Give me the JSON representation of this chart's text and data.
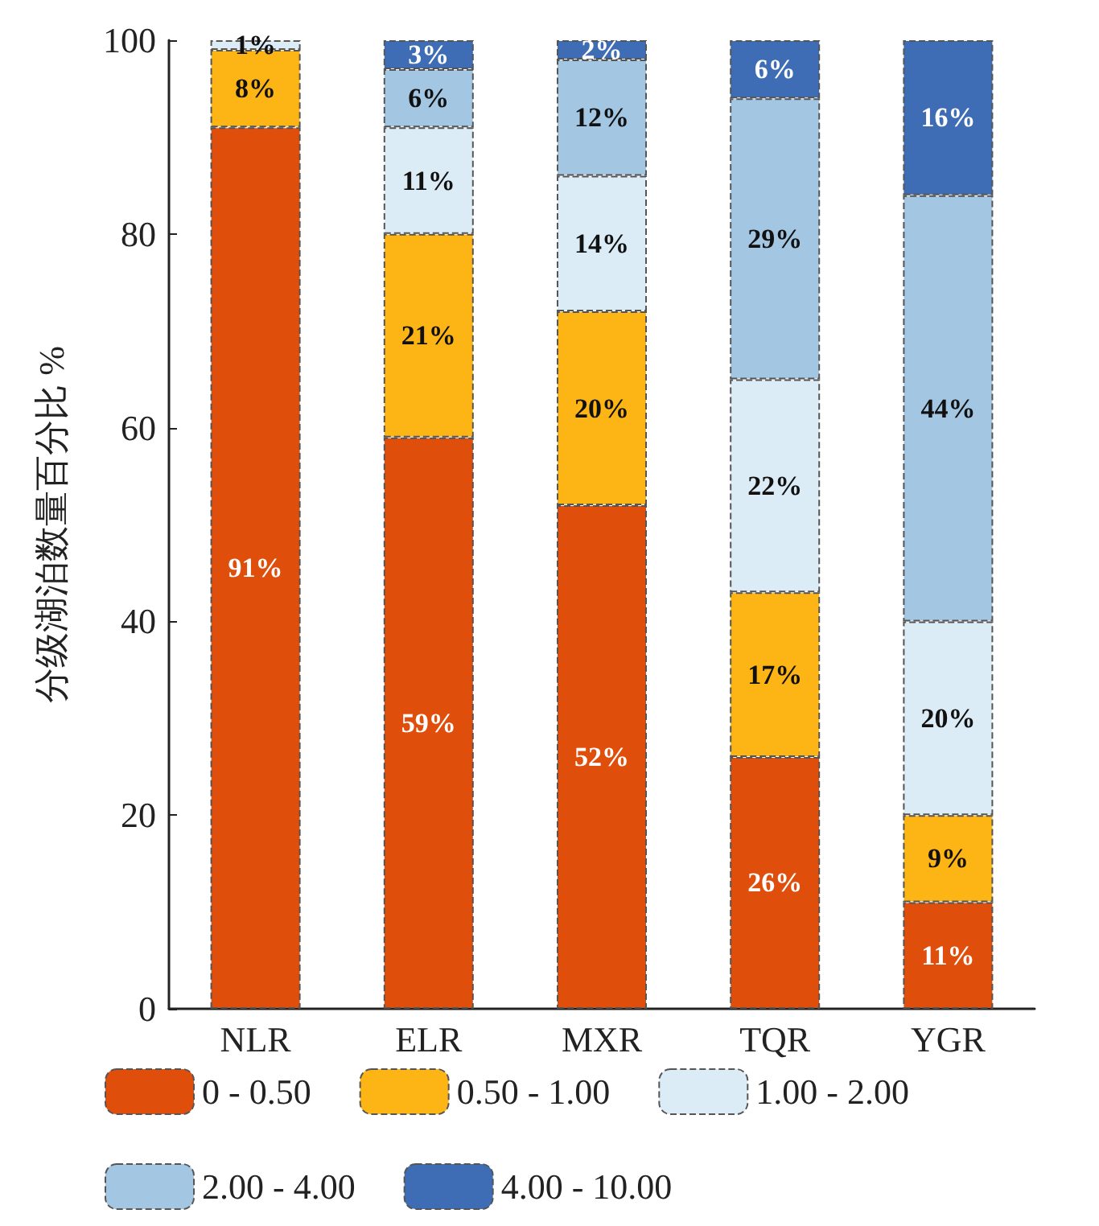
{
  "chart_data": {
    "type": "bar",
    "stacked": true,
    "ylabel": "分级湖泊数量百分比 %",
    "categories": [
      "NLR",
      "ELR",
      "MXR",
      "TQR",
      "YGR"
    ],
    "ylim": [
      0,
      100
    ],
    "yticks": [
      0,
      20,
      40,
      60,
      80,
      100
    ],
    "legend": "bottom",
    "grid": false,
    "series": [
      {
        "name": "0 - 0.50",
        "color": "#e04e0b",
        "values": [
          91,
          59,
          52,
          26,
          11
        ],
        "value_labels": [
          "91%",
          "59%",
          "52%",
          "26%",
          "11%"
        ]
      },
      {
        "name": "0.50 - 1.00",
        "color": "#fdb515",
        "values": [
          8,
          21,
          20,
          17,
          9
        ],
        "value_labels": [
          "8%",
          "21%",
          "20%",
          "17%",
          "9%"
        ]
      },
      {
        "name": "1.00 - 2.00",
        "color": "#dcecf6",
        "values": [
          1,
          11,
          14,
          22,
          20
        ],
        "value_labels": [
          "1%",
          "11%",
          "14%",
          "22%",
          "20%"
        ]
      },
      {
        "name": "2.00 - 4.00",
        "color": "#a3c6e3",
        "values": [
          0,
          6,
          12,
          29,
          44
        ],
        "value_labels": [
          null,
          "6%",
          "12%",
          "29%",
          "44%"
        ]
      },
      {
        "name": "4.00 - 10.00",
        "color": "#3e6db5",
        "values": [
          0,
          3,
          2,
          6,
          16
        ],
        "value_labels": [
          null,
          "3%",
          "2%",
          "6%",
          "16%"
        ]
      }
    ]
  }
}
